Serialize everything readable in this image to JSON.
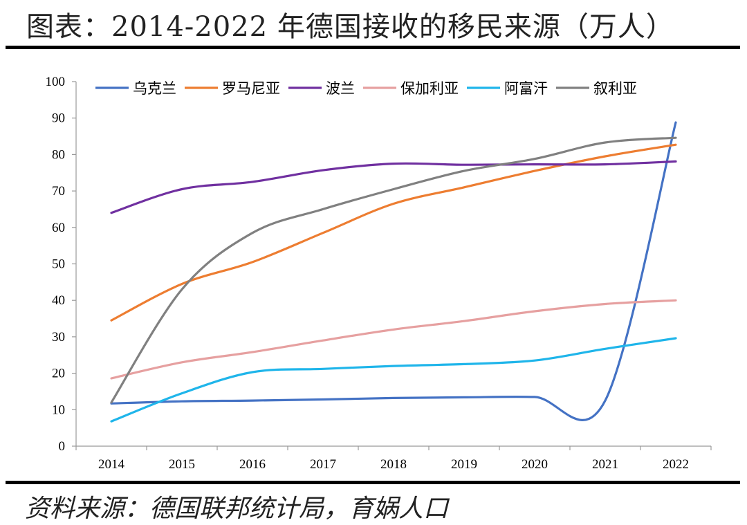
{
  "title": "图表：2014-2022 年德国接收的移民来源（万人）",
  "source": "资料来源：德国联邦统计局，育娲人口",
  "chart_data": {
    "type": "line",
    "title": "图表：2014-2022 年德国接收的移民来源（万人）",
    "xlabel": "",
    "ylabel": "",
    "ylim": [
      0,
      100
    ],
    "yticks": [
      0,
      10,
      20,
      30,
      40,
      50,
      60,
      70,
      80,
      90,
      100
    ],
    "categories": [
      "2014",
      "2015",
      "2016",
      "2017",
      "2018",
      "2019",
      "2020",
      "2021",
      "2022"
    ],
    "legend_position": "top",
    "series": [
      {
        "name": "乌克兰",
        "color": "#4472C4",
        "values": [
          11.7,
          12.3,
          12.5,
          12.8,
          13.2,
          13.4,
          13.5,
          12.5,
          88.8
        ]
      },
      {
        "name": "罗马尼亚",
        "color": "#ED7D31",
        "values": [
          34.5,
          44.5,
          50.5,
          58.5,
          66.5,
          71.0,
          75.5,
          79.5,
          82.7
        ]
      },
      {
        "name": "波兰",
        "color": "#7030A0",
        "values": [
          64.0,
          70.5,
          72.5,
          75.7,
          77.5,
          77.2,
          77.3,
          77.3,
          78.1
        ]
      },
      {
        "name": "保加利亚",
        "color": "#E6A0A0",
        "values": [
          18.6,
          23.0,
          25.8,
          29.0,
          32.0,
          34.3,
          37.0,
          39.0,
          40.0
        ]
      },
      {
        "name": "阿富汗",
        "color": "#1FB5EA",
        "values": [
          6.8,
          14.5,
          20.3,
          21.2,
          22.0,
          22.5,
          23.5,
          26.7,
          29.6
        ]
      },
      {
        "name": "叙利亚",
        "color": "#808080",
        "values": [
          12.0,
          43.0,
          58.5,
          65.0,
          70.5,
          75.5,
          78.8,
          83.3,
          84.6
        ]
      }
    ]
  }
}
